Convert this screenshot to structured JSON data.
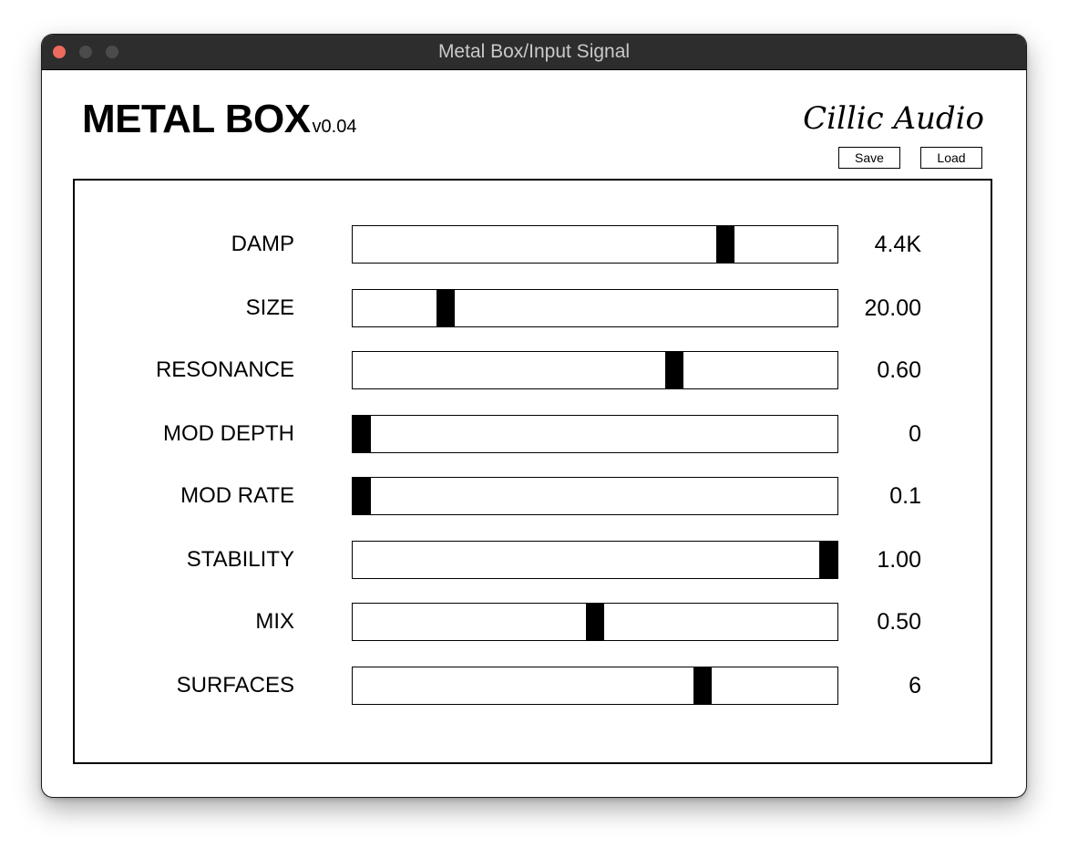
{
  "window": {
    "title": "Metal Box/Input Signal"
  },
  "header": {
    "product_name": "METAL BOX",
    "version": "v0.04",
    "vendor": "Cillic Audio",
    "save_label": "Save",
    "load_label": "Load"
  },
  "parameters": [
    {
      "key": "damp",
      "label": "DAMP",
      "value": "4.4K",
      "fraction": 0.78
    },
    {
      "key": "size",
      "label": "SIZE",
      "value": "20.00",
      "fraction": 0.18
    },
    {
      "key": "resonance",
      "label": "RESONANCE",
      "value": "0.60",
      "fraction": 0.67
    },
    {
      "key": "mod-depth",
      "label": "MOD DEPTH",
      "value": "0",
      "fraction": 0.0
    },
    {
      "key": "mod-rate",
      "label": "MOD RATE",
      "value": "0.1",
      "fraction": 0.0
    },
    {
      "key": "stability",
      "label": "STABILITY",
      "value": "1.00",
      "fraction": 1.0
    },
    {
      "key": "mix",
      "label": "MIX",
      "value": "0.50",
      "fraction": 0.5
    },
    {
      "key": "surfaces",
      "label": "SURFACES",
      "value": "6",
      "fraction": 0.73
    }
  ],
  "colors": {
    "titlebar": "#2d2d2d",
    "close_button": "#ec6a5e",
    "slider_thumb": "#000000"
  }
}
